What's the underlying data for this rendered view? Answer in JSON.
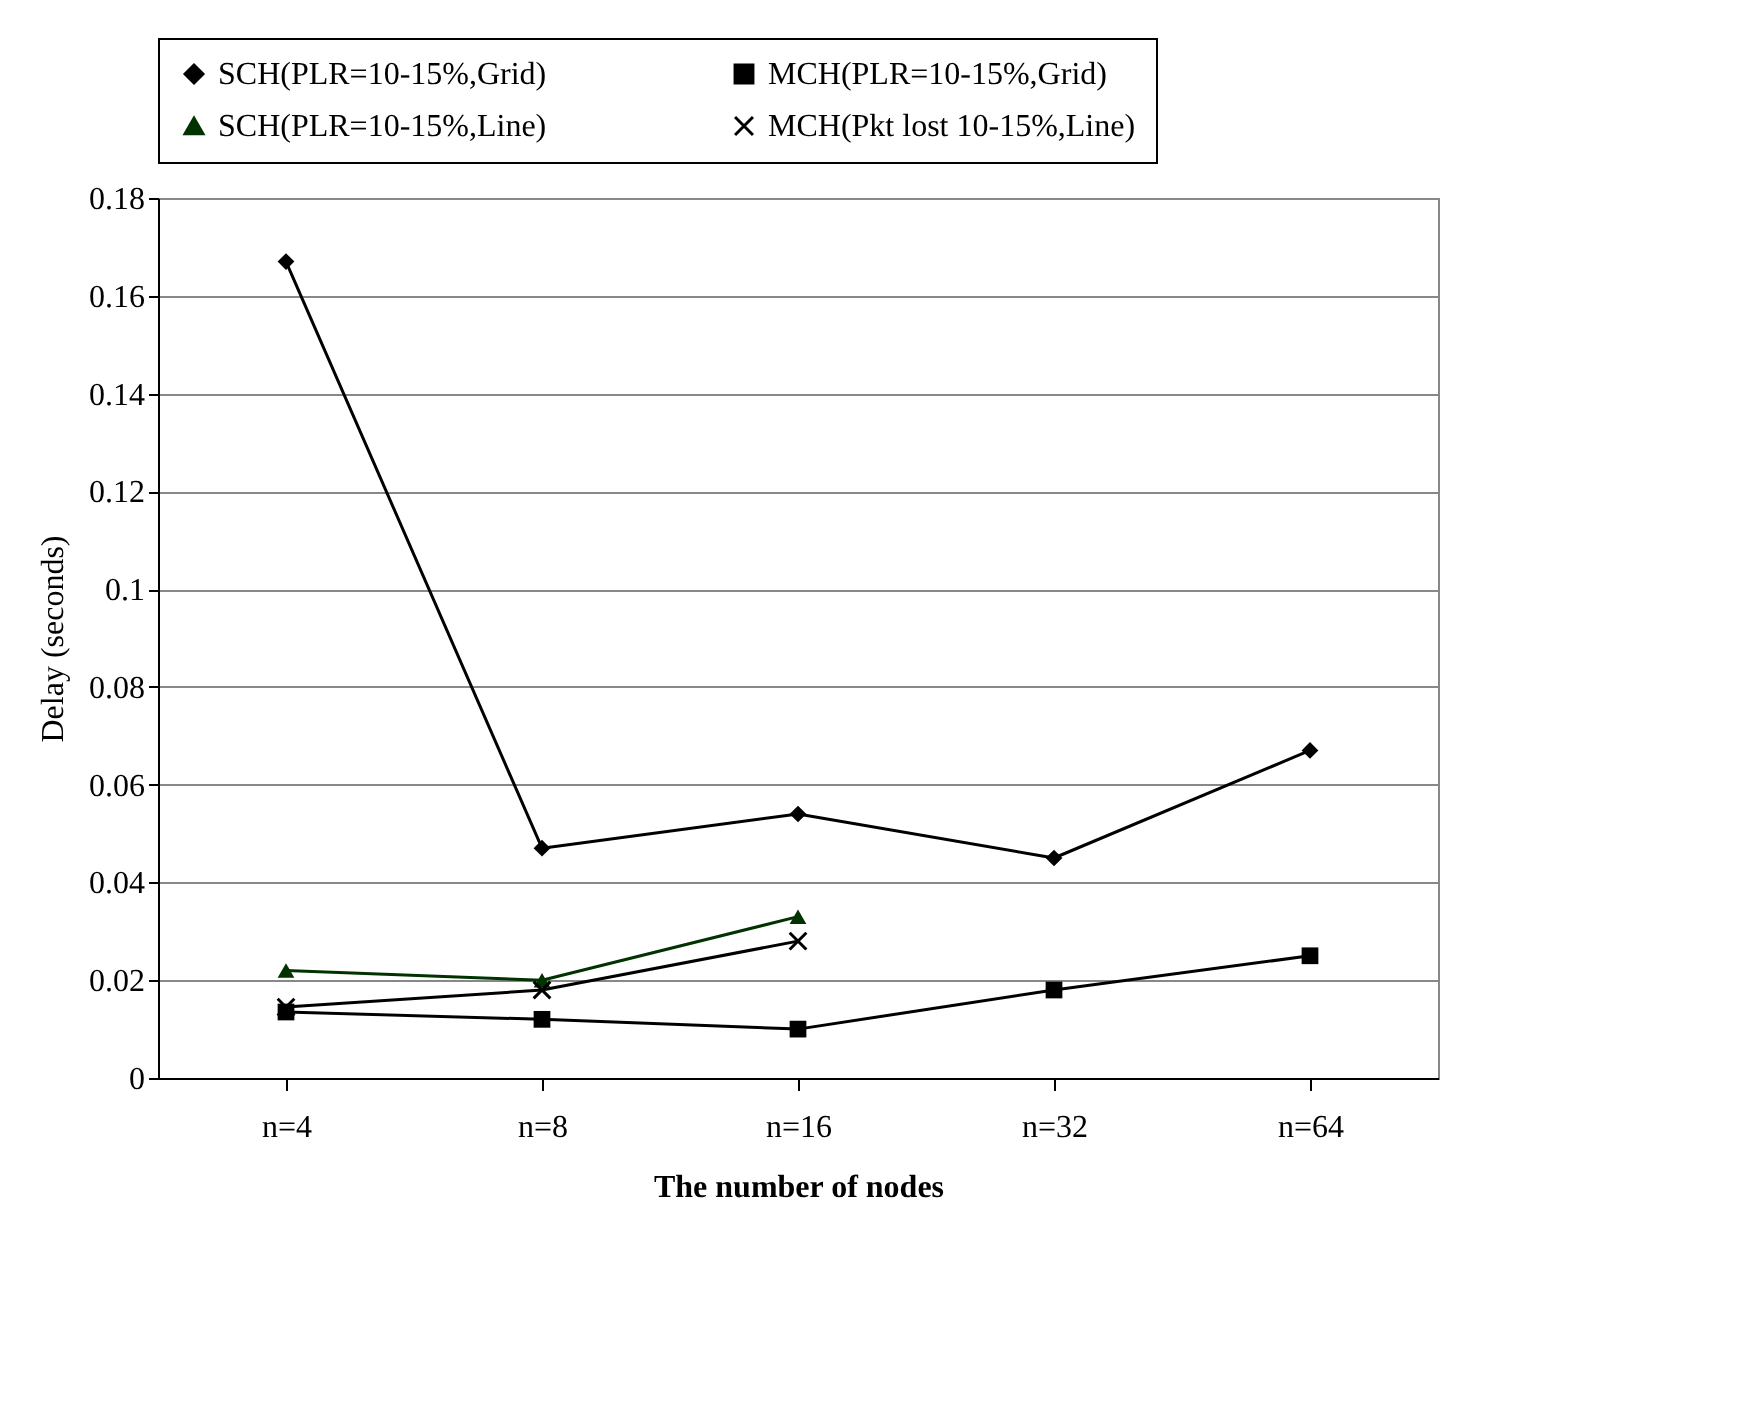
{
  "chart_data": {
    "type": "line",
    "xlabel": "The number of nodes",
    "ylabel": "Delay (seconds)",
    "categories": [
      "n=4",
      "n=8",
      "n=16",
      "n=32",
      "n=64"
    ],
    "series": [
      {
        "name": "SCH(PLR=10-15%,Grid)",
        "color": "#000000",
        "marker": "diamond",
        "values": [
          0.167,
          0.047,
          0.054,
          0.045,
          0.067
        ]
      },
      {
        "name": "MCH(PLR=10-15%,Grid)",
        "color": "#000000",
        "marker": "square",
        "values": [
          0.0135,
          0.012,
          0.01,
          0.018,
          0.025
        ]
      },
      {
        "name": "SCH(PLR=10-15%,Line)",
        "color": "#003300",
        "marker": "triangle",
        "values": [
          0.022,
          0.02,
          0.033,
          null,
          null
        ]
      },
      {
        "name": "MCH(Pkt lost 10-15%,Line)",
        "color": "#000000",
        "marker": "cross",
        "values": [
          0.0145,
          0.018,
          0.028,
          null,
          null
        ]
      }
    ],
    "ylim": [
      0,
      0.18
    ],
    "yticks": [
      0,
      0.02,
      0.04,
      0.06,
      0.08,
      0.1,
      0.12,
      0.14,
      0.16,
      0.18
    ],
    "grid": "y",
    "legend": "top",
    "line_style": "solid"
  }
}
